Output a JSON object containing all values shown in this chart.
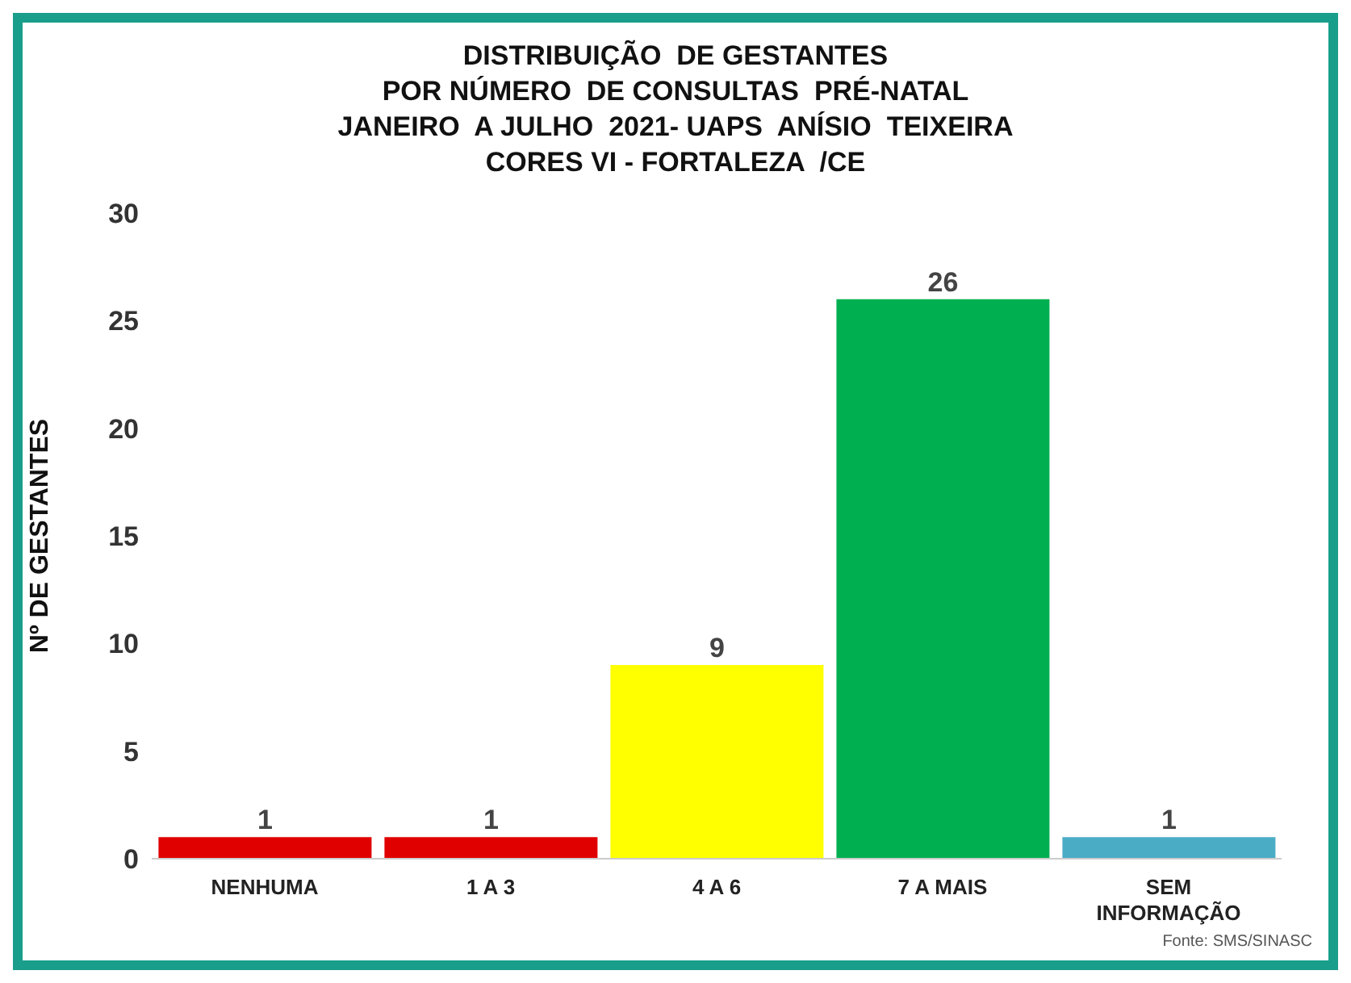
{
  "chart_data": {
    "type": "bar",
    "title": "DISTRIBUIÇÃO  DE GESTANTES\nPOR NÚMERO  DE CONSULTAS  PRÉ-NATAL\nJANEIRO  A JULHO  2021- UAPS  ANÍSIO  TEIXEIRA\nCORES VI - FORTALEZA  /CE",
    "ylabel": "Nº DE GESTANTES",
    "categories": [
      "NENHUMA",
      "1 A 3",
      "4 A 6",
      "7 A MAIS",
      "SEM INFORMAÇÃO"
    ],
    "values": [
      1,
      1,
      9,
      26,
      1
    ],
    "colors": [
      "#e00000",
      "#e00000",
      "#ffff00",
      "#00b050",
      "#4bacc6"
    ],
    "ylim": [
      0,
      30
    ],
    "yticks": [
      0,
      5,
      10,
      15,
      20,
      25,
      30
    ],
    "grid": false,
    "data_labels": true,
    "legend": false,
    "annotations": [
      "Fonte: SMS/SINASC"
    ]
  }
}
